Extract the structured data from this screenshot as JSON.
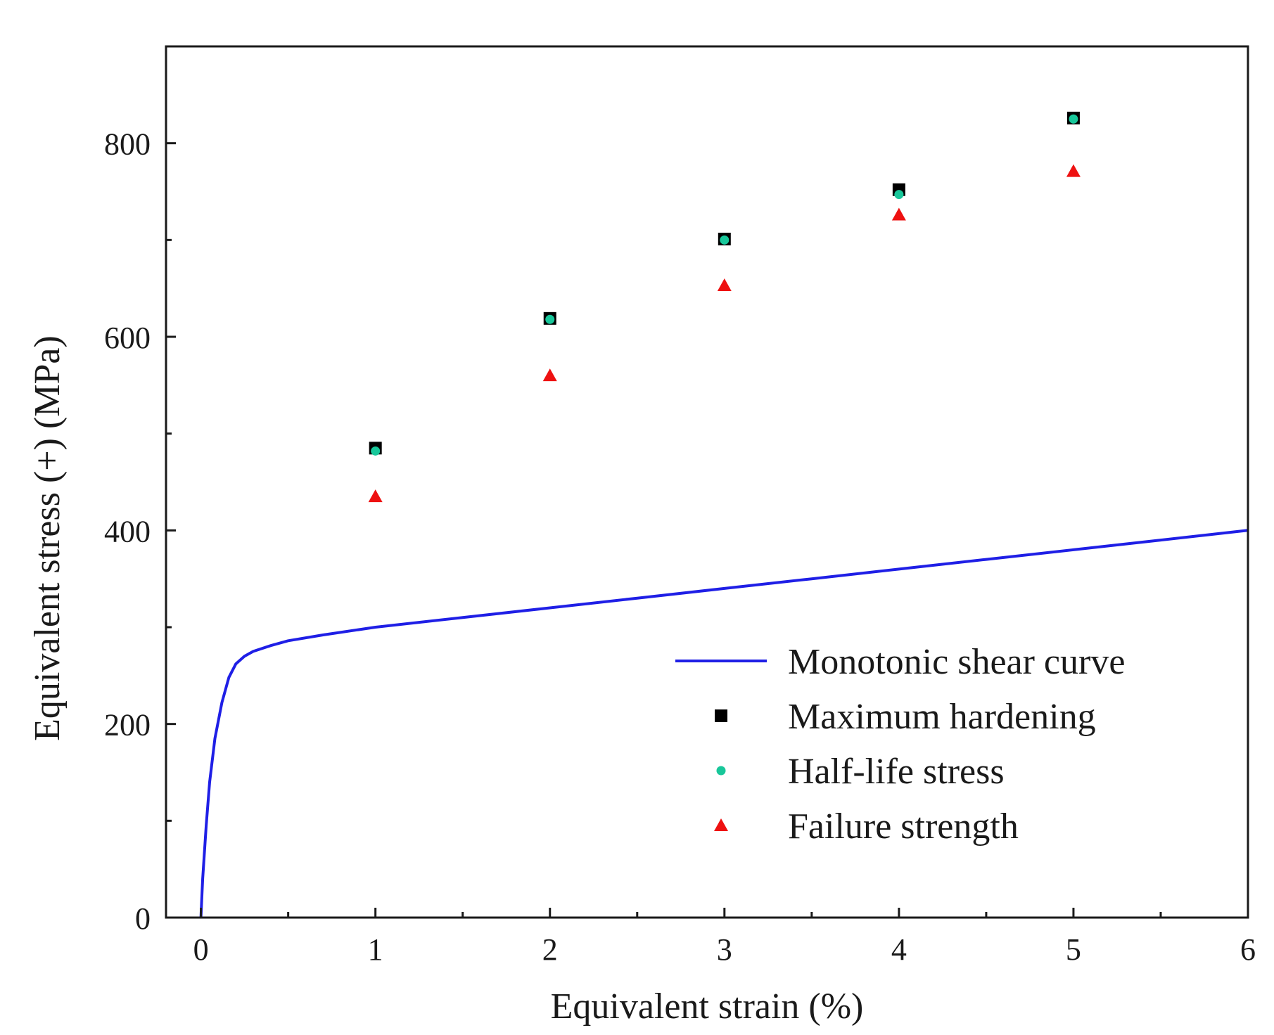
{
  "colors": {
    "monotonic": "#1f1fe6",
    "maximum": "#000000",
    "half_life": "#18c79a",
    "failure": "#ee1111",
    "axis": "#1a1a1a"
  },
  "chart_data": {
    "type": "scatter",
    "title": "",
    "xlabel": "Equivalent strain (%)",
    "ylabel": "Equivalent stress (+) (MPa)",
    "xlim": [
      -0.2,
      6
    ],
    "ylim": [
      0,
      900
    ],
    "x_ticks": [
      0,
      1,
      2,
      3,
      4,
      5,
      6
    ],
    "x_tick_labels": [
      "0",
      "1",
      "2",
      "3",
      "4",
      "5",
      "6"
    ],
    "x_minor_ticks": [
      0.5,
      1.5,
      2.5,
      3.5,
      4.5,
      5.5
    ],
    "y_ticks": [
      0,
      200,
      400,
      600,
      800
    ],
    "y_tick_labels": [
      "0",
      "200",
      "400",
      "600",
      "800"
    ],
    "y_minor_ticks": [
      100,
      300,
      500,
      700
    ],
    "legend_position": "bottom-right",
    "series": [
      {
        "name": "Monotonic shear curve",
        "kind": "line",
        "color_key": "monotonic",
        "x": [
          0,
          0.01,
          0.03,
          0.05,
          0.08,
          0.12,
          0.16,
          0.2,
          0.25,
          0.3,
          0.4,
          0.5,
          0.7,
          1.0,
          1.5,
          2.0,
          2.5,
          3.0,
          3.5,
          4.0,
          4.5,
          5.0,
          5.5,
          6.0
        ],
        "y": [
          0,
          40,
          95,
          140,
          185,
          222,
          248,
          262,
          270,
          275,
          281,
          286,
          292,
          300,
          310,
          320,
          330,
          340,
          350,
          360,
          370,
          380,
          390,
          400
        ]
      },
      {
        "name": "Maximum hardening",
        "kind": "square",
        "color_key": "maximum",
        "x": [
          1,
          2,
          3,
          4,
          5
        ],
        "y": [
          485,
          619,
          701,
          752,
          826
        ]
      },
      {
        "name": "Half-life stress",
        "kind": "circle",
        "color_key": "half_life",
        "x": [
          1,
          2,
          3,
          4,
          5
        ],
        "y": [
          482,
          618,
          700,
          747,
          825
        ]
      },
      {
        "name": "Failure strength",
        "kind": "triangle",
        "color_key": "failure",
        "x": [
          1,
          2,
          3,
          4,
          5
        ],
        "y": [
          435,
          560,
          653,
          726,
          771
        ]
      }
    ]
  }
}
